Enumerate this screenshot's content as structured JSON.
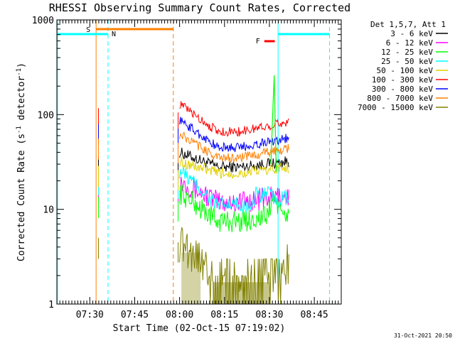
{
  "chart_data": {
    "type": "line",
    "title": "RHESSI Observing Summary Count Rates, Corrected",
    "xlabel": "Start Time (02-Oct-15 07:19:02)",
    "ylabel": "Corrected Count Rate (s⁻¹ detector⁻¹)",
    "ylog": true,
    "ylim": [
      1,
      1000
    ],
    "xlim_minutes": [
      0,
      95
    ],
    "x_ticks": [
      {
        "label": "07:30",
        "t": 11
      },
      {
        "label": "07:45",
        "t": 26
      },
      {
        "label": "08:00",
        "t": 41
      },
      {
        "label": "08:15",
        "t": 56
      },
      {
        "label": "08:30",
        "t": 71
      },
      {
        "label": "08:45",
        "t": 86
      }
    ],
    "y_ticks": [
      {
        "label": "1",
        "v": 1
      },
      {
        "label": "10",
        "v": 10
      },
      {
        "label": "100",
        "v": 100
      },
      {
        "label": "1000",
        "v": 1000
      }
    ],
    "legend_title": "Det 1,5,7, Att 1",
    "legend_position": "right",
    "series": [
      {
        "name": "3 - 6 keV",
        "color": "#000000"
      },
      {
        "name": "6 - 12 keV",
        "color": "#ff00ff"
      },
      {
        "name": "12 - 25 keV",
        "color": "#00ff00"
      },
      {
        "name": "25 - 50 keV",
        "color": "#00ffff"
      },
      {
        "name": "50 - 100 keV",
        "color": "#e0d000"
      },
      {
        "name": "100 - 300 keV",
        "color": "#ff0000"
      },
      {
        "name": "300 - 800 keV",
        "color": "#0000ff"
      },
      {
        "name": "800 - 7000 keV",
        "color": "#ff8000"
      },
      {
        "name": "7000 - 15000 keV",
        "color": "#808000"
      }
    ],
    "flags": [
      {
        "label": "S",
        "color": "#ff8000"
      },
      {
        "label": "N",
        "color": "#00ffff"
      },
      {
        "label": "F",
        "color": "#ff0000"
      }
    ]
  },
  "footer_date": "31-Oct-2021 20:50"
}
